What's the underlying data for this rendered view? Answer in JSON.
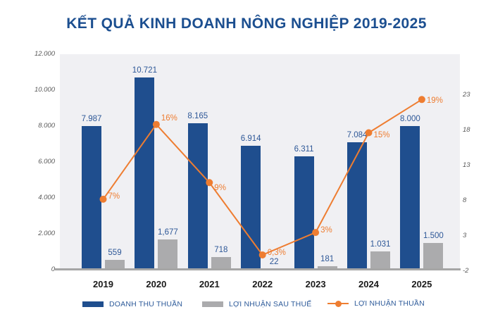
{
  "title": "KẾT QUẢ KINH DOANH NÔNG NGHIỆP 2019-2025",
  "colors": {
    "bar_blue": "#1F4E8E",
    "bar_gray": "#ABABAD",
    "line_orange": "#EE7D31",
    "title_blue": "#1C4F90",
    "data_label_blue": "#2D5797",
    "axis_label_gray": "#595959",
    "plot_background": "#F0F0F3",
    "baseline_gray": "#A6A6A6"
  },
  "axes": {
    "left_ticks": [
      "12.000",
      "10.000",
      "8.000",
      "6.000",
      "4.000",
      "2.000",
      "0"
    ],
    "right_ticks": [
      "23",
      "18",
      "13",
      "8",
      "3",
      "-2"
    ]
  },
  "legend": {
    "items": [
      {
        "label": "DOANH THU THUẦN",
        "swatch": "blue-bar"
      },
      {
        "label": "LỢI NHUẬN SAU THUẾ",
        "swatch": "gray-bar"
      },
      {
        "label": "LỢI NHUẬN THUẦN",
        "swatch": "orange-line-dot"
      }
    ]
  },
  "chart_data": {
    "type": "bar+line combo",
    "title": "KẾT QUẢ KINH DOANH NÔNG NGHIỆP 2019-2025",
    "categories": [
      "2019",
      "2020",
      "2021",
      "2022",
      "2023",
      "2024",
      "2025"
    ],
    "series": [
      {
        "name": "DOANH THU THUẦN",
        "type": "bar",
        "axis": "left",
        "color": "#1F4E8E",
        "values": [
          7987,
          10721,
          8165,
          6914,
          6311,
          7084,
          8000
        ],
        "labels": [
          "7.987",
          "10.721",
          "8.165",
          "6.914",
          "6.311",
          "7.084",
          "8.000"
        ]
      },
      {
        "name": "LỢI NHUẬN SAU THUẾ",
        "type": "bar",
        "axis": "left",
        "color": "#ABABAD",
        "values": [
          559,
          1677,
          718,
          22,
          181,
          1031,
          1500
        ],
        "labels": [
          "559",
          "1,677",
          "718",
          "22",
          "181",
          "1.031",
          "1.500"
        ]
      },
      {
        "name": "LỢI NHUẬN THUẦN",
        "type": "line",
        "axis": "right",
        "color": "#EE7D31",
        "values": [
          7,
          16,
          9,
          0.3,
          3,
          15,
          19
        ],
        "labels": [
          "7%",
          "16%",
          "9%",
          "0,3%",
          "3%",
          "15%",
          "19%"
        ]
      }
    ],
    "ylim_left": [
      0,
      12000
    ],
    "left_tick_values": [
      0,
      2000,
      4000,
      6000,
      8000,
      10000,
      12000
    ],
    "right_tick_values": [
      -2,
      3,
      8,
      13,
      18,
      23
    ],
    "grid": false,
    "legend_position": "bottom"
  }
}
